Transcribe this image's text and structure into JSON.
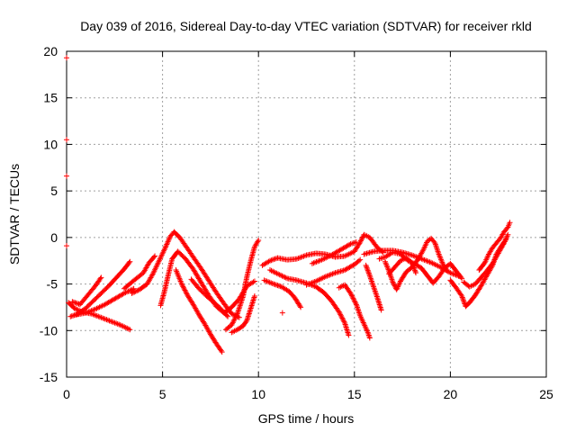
{
  "chart_data": {
    "type": "scatter",
    "title": "Day 039 of 2016, Sidereal Day-to-day VTEC variation (SDTVAR) for receiver rkld",
    "xlabel": "GPS time / hours",
    "ylabel": "SDTVAR / TECUs",
    "xlim": [
      0,
      25
    ],
    "ylim": [
      -15,
      20
    ],
    "xticks": [
      0,
      5,
      10,
      15,
      20,
      25
    ],
    "yticks": [
      -15,
      -10,
      -5,
      0,
      5,
      10,
      15,
      20
    ],
    "xtick_labels": [
      "0",
      "5",
      "10",
      "15",
      "20",
      "25"
    ],
    "ytick_labels": [
      "-15",
      "-10",
      "-5",
      "0",
      "5",
      "10",
      "15",
      "20"
    ],
    "grid": true,
    "marker": "+",
    "marker_color": "#ff0000",
    "isolated_points": [
      {
        "x": 0.0,
        "y": 19.3
      },
      {
        "x": 0.0,
        "y": 10.5
      },
      {
        "x": 0.0,
        "y": 6.6
      },
      {
        "x": 0.0,
        "y": -0.9
      },
      {
        "x": 11.25,
        "y": -8.1
      }
    ],
    "tracks": [
      {
        "name": "track-1",
        "points": [
          [
            0.1,
            -7.0
          ],
          [
            0.4,
            -7.6
          ],
          [
            0.8,
            -8.0
          ],
          [
            1.3,
            -8.2
          ],
          [
            1.8,
            -8.6
          ],
          [
            2.3,
            -9.0
          ],
          [
            2.8,
            -9.4
          ],
          [
            3.3,
            -9.9
          ]
        ]
      },
      {
        "name": "track-2",
        "points": [
          [
            0.2,
            -8.5
          ],
          [
            0.6,
            -8.2
          ],
          [
            1.0,
            -7.6
          ],
          [
            1.4,
            -6.8
          ],
          [
            1.8,
            -6.0
          ],
          [
            2.2,
            -5.2
          ],
          [
            2.6,
            -4.3
          ],
          [
            3.0,
            -3.4
          ],
          [
            3.3,
            -2.6
          ]
        ]
      },
      {
        "name": "track-3",
        "points": [
          [
            0.3,
            -6.9
          ],
          [
            0.7,
            -7.2
          ],
          [
            1.1,
            -6.2
          ],
          [
            1.5,
            -5.2
          ],
          [
            1.8,
            -4.3
          ]
        ]
      },
      {
        "name": "track-4",
        "points": [
          [
            0.5,
            -8.3
          ],
          [
            1.0,
            -8.1
          ],
          [
            1.5,
            -7.7
          ],
          [
            2.0,
            -7.2
          ],
          [
            2.5,
            -6.6
          ],
          [
            3.0,
            -6.0
          ],
          [
            3.5,
            -5.5
          ]
        ]
      },
      {
        "name": "track-5",
        "points": [
          [
            3.0,
            -5.5
          ],
          [
            3.4,
            -4.8
          ],
          [
            3.7,
            -4.3
          ],
          [
            4.0,
            -3.8
          ],
          [
            4.3,
            -2.7
          ],
          [
            4.6,
            -2.0
          ]
        ]
      },
      {
        "name": "track-6",
        "points": [
          [
            3.4,
            -6.0
          ],
          [
            3.8,
            -5.6
          ],
          [
            4.2,
            -5.0
          ],
          [
            4.5,
            -3.9
          ],
          [
            4.8,
            -2.6
          ],
          [
            5.1,
            -1.3
          ],
          [
            5.4,
            0.1
          ],
          [
            5.6,
            0.6
          ],
          [
            5.9,
            0.0
          ],
          [
            6.2,
            -0.9
          ],
          [
            6.6,
            -2.1
          ],
          [
            7.0,
            -3.3
          ],
          [
            7.4,
            -4.6
          ],
          [
            7.8,
            -5.9
          ],
          [
            8.2,
            -7.1
          ],
          [
            8.6,
            -8.2
          ],
          [
            9.0,
            -8.6
          ]
        ]
      },
      {
        "name": "track-7",
        "points": [
          [
            4.9,
            -7.3
          ],
          [
            5.1,
            -5.8
          ],
          [
            5.3,
            -4.0
          ],
          [
            5.5,
            -2.3
          ],
          [
            5.8,
            -1.5
          ],
          [
            6.2,
            -2.3
          ],
          [
            6.6,
            -3.4
          ],
          [
            7.0,
            -4.8
          ],
          [
            7.4,
            -6.2
          ],
          [
            7.8,
            -7.4
          ],
          [
            8.2,
            -8.1
          ],
          [
            8.6,
            -7.5
          ],
          [
            9.0,
            -6.6
          ],
          [
            9.4,
            -5.2
          ],
          [
            9.8,
            -4.7
          ]
        ]
      },
      {
        "name": "track-8",
        "points": [
          [
            5.7,
            -3.5
          ],
          [
            6.0,
            -5.0
          ],
          [
            6.3,
            -6.2
          ],
          [
            6.6,
            -7.2
          ],
          [
            6.9,
            -8.3
          ],
          [
            7.2,
            -9.3
          ],
          [
            7.5,
            -10.4
          ],
          [
            7.8,
            -11.4
          ],
          [
            8.1,
            -12.3
          ]
        ]
      },
      {
        "name": "track-9",
        "points": [
          [
            6.5,
            -4.5
          ],
          [
            6.9,
            -5.5
          ],
          [
            7.3,
            -6.3
          ],
          [
            7.7,
            -7.0
          ],
          [
            8.1,
            -7.8
          ],
          [
            8.4,
            -8.5
          ]
        ]
      },
      {
        "name": "track-10",
        "points": [
          [
            8.3,
            -9.9
          ],
          [
            8.6,
            -9.4
          ],
          [
            8.9,
            -8.2
          ],
          [
            9.2,
            -6.3
          ],
          [
            9.4,
            -4.2
          ],
          [
            9.6,
            -2.5
          ],
          [
            9.8,
            -1.0
          ],
          [
            10.0,
            -0.3
          ]
        ]
      },
      {
        "name": "track-11",
        "points": [
          [
            8.6,
            -10.2
          ],
          [
            8.9,
            -9.9
          ],
          [
            9.2,
            -9.5
          ],
          [
            9.4,
            -8.9
          ],
          [
            9.6,
            -7.6
          ],
          [
            9.8,
            -6.3
          ]
        ]
      },
      {
        "name": "track-12",
        "points": [
          [
            10.2,
            -3.0
          ],
          [
            10.6,
            -2.5
          ],
          [
            11.0,
            -2.2
          ],
          [
            11.5,
            -2.4
          ],
          [
            12.0,
            -2.3
          ],
          [
            12.5,
            -1.9
          ],
          [
            13.0,
            -1.7
          ],
          [
            13.5,
            -1.8
          ],
          [
            14.0,
            -2.1
          ],
          [
            14.5,
            -2.0
          ],
          [
            15.0,
            -1.5
          ],
          [
            15.3,
            -0.5
          ],
          [
            15.5,
            0.3
          ],
          [
            15.8,
            0.0
          ],
          [
            16.2,
            -1.1
          ],
          [
            16.5,
            -1.6
          ]
        ]
      },
      {
        "name": "track-13",
        "points": [
          [
            10.3,
            -4.6
          ],
          [
            10.8,
            -5.0
          ],
          [
            11.2,
            -5.3
          ],
          [
            11.6,
            -5.8
          ],
          [
            11.9,
            -6.5
          ],
          [
            12.2,
            -7.5
          ]
        ]
      },
      {
        "name": "track-14",
        "points": [
          [
            10.6,
            -3.5
          ],
          [
            11.1,
            -4.0
          ],
          [
            11.5,
            -4.4
          ],
          [
            12.0,
            -4.6
          ],
          [
            12.5,
            -4.9
          ],
          [
            13.0,
            -5.3
          ],
          [
            13.4,
            -5.9
          ],
          [
            13.8,
            -6.8
          ],
          [
            14.2,
            -8.0
          ],
          [
            14.5,
            -9.2
          ],
          [
            14.7,
            -10.5
          ]
        ]
      },
      {
        "name": "track-15",
        "points": [
          [
            12.8,
            -2.8
          ],
          [
            13.3,
            -2.4
          ],
          [
            13.8,
            -1.9
          ],
          [
            14.3,
            -1.3
          ],
          [
            14.8,
            -0.7
          ],
          [
            15.1,
            -0.5
          ]
        ]
      },
      {
        "name": "track-16",
        "points": [
          [
            12.5,
            -5.1
          ],
          [
            13.0,
            -4.7
          ],
          [
            13.5,
            -4.2
          ],
          [
            14.0,
            -3.8
          ],
          [
            14.5,
            -3.5
          ],
          [
            15.0,
            -2.9
          ],
          [
            15.3,
            -2.4
          ]
        ]
      },
      {
        "name": "track-17",
        "points": [
          [
            14.2,
            -5.4
          ],
          [
            14.5,
            -5.1
          ],
          [
            14.8,
            -6.0
          ],
          [
            15.1,
            -7.2
          ],
          [
            15.3,
            -8.4
          ],
          [
            15.5,
            -9.3
          ],
          [
            15.7,
            -10.2
          ],
          [
            15.8,
            -10.8
          ]
        ]
      },
      {
        "name": "track-18",
        "points": [
          [
            15.6,
            -3.0
          ],
          [
            15.8,
            -4.1
          ],
          [
            16.0,
            -5.3
          ],
          [
            16.2,
            -6.5
          ],
          [
            16.4,
            -7.8
          ]
        ]
      },
      {
        "name": "track-19",
        "points": [
          [
            15.5,
            -1.8
          ],
          [
            16.0,
            -1.5
          ],
          [
            16.5,
            -1.4
          ],
          [
            17.0,
            -1.4
          ],
          [
            17.5,
            -1.6
          ],
          [
            18.0,
            -1.9
          ],
          [
            18.5,
            -2.3
          ],
          [
            19.0,
            -2.7
          ],
          [
            19.5,
            -3.2
          ],
          [
            20.0,
            -3.8
          ],
          [
            20.5,
            -4.2
          ]
        ]
      },
      {
        "name": "track-20",
        "points": [
          [
            16.6,
            -2.6
          ],
          [
            16.8,
            -3.6
          ],
          [
            17.0,
            -4.8
          ],
          [
            17.2,
            -5.6
          ],
          [
            17.4,
            -4.7
          ],
          [
            17.7,
            -3.7
          ],
          [
            18.0,
            -3.2
          ],
          [
            18.3,
            -2.4
          ],
          [
            18.6,
            -1.3
          ],
          [
            18.8,
            -0.4
          ],
          [
            19.0,
            -0.1
          ],
          [
            19.2,
            -0.6
          ],
          [
            19.4,
            -1.8
          ],
          [
            19.6,
            -2.8
          ],
          [
            19.8,
            -3.5
          ]
        ]
      },
      {
        "name": "track-21",
        "points": [
          [
            16.3,
            -2.3
          ],
          [
            16.6,
            -2.1
          ],
          [
            17.0,
            -1.6
          ],
          [
            17.4,
            -1.8
          ],
          [
            17.8,
            -2.5
          ],
          [
            18.2,
            -2.9
          ],
          [
            18.5,
            -3.3
          ],
          [
            18.8,
            -4.1
          ],
          [
            19.1,
            -4.9
          ],
          [
            19.4,
            -4.2
          ],
          [
            19.7,
            -3.3
          ],
          [
            20.0,
            -2.8
          ],
          [
            20.3,
            -3.6
          ],
          [
            20.6,
            -4.4
          ]
        ]
      },
      {
        "name": "track-22",
        "points": [
          [
            16.8,
            -3.9
          ],
          [
            17.1,
            -3.2
          ],
          [
            17.4,
            -2.5
          ],
          [
            17.7,
            -2.2
          ],
          [
            18.0,
            -2.7
          ],
          [
            18.2,
            -3.8
          ]
        ]
      },
      {
        "name": "track-23",
        "points": [
          [
            20.0,
            -4.6
          ],
          [
            20.3,
            -5.4
          ],
          [
            20.6,
            -6.3
          ],
          [
            20.8,
            -7.4
          ],
          [
            21.0,
            -7.0
          ],
          [
            21.3,
            -6.2
          ],
          [
            21.6,
            -5.2
          ],
          [
            21.9,
            -4.1
          ],
          [
            22.2,
            -3.0
          ],
          [
            22.4,
            -1.8
          ],
          [
            22.7,
            -0.8
          ],
          [
            22.9,
            -0.2
          ]
        ]
      },
      {
        "name": "track-24",
        "points": [
          [
            20.7,
            -4.8
          ],
          [
            21.0,
            -5.3
          ],
          [
            21.3,
            -5.0
          ],
          [
            21.6,
            -4.3
          ],
          [
            21.9,
            -3.6
          ],
          [
            22.2,
            -2.8
          ],
          [
            22.5,
            -1.7
          ],
          [
            22.8,
            -0.6
          ],
          [
            23.0,
            0.3
          ]
        ]
      },
      {
        "name": "track-25",
        "points": [
          [
            21.5,
            -3.5
          ],
          [
            21.8,
            -2.7
          ],
          [
            22.0,
            -1.8
          ],
          [
            22.2,
            -1.1
          ],
          [
            22.4,
            -0.6
          ],
          [
            22.6,
            -0.1
          ],
          [
            22.8,
            0.6
          ],
          [
            23.0,
            1.1
          ],
          [
            23.1,
            1.6
          ]
        ]
      }
    ]
  }
}
